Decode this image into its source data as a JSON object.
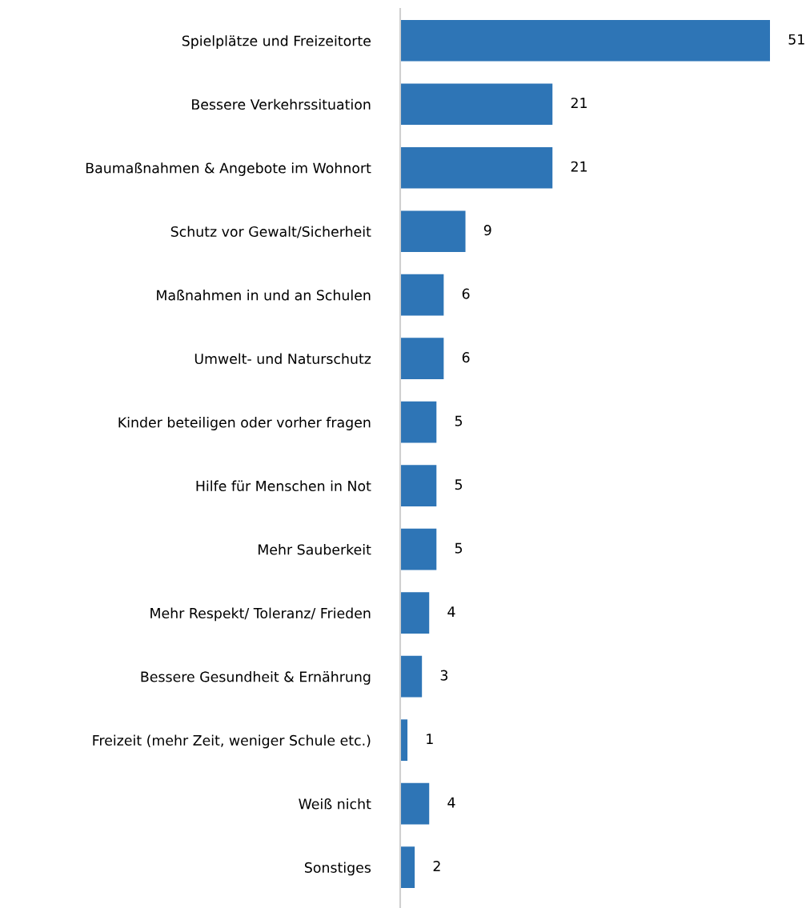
{
  "chart_data": {
    "type": "bar",
    "orientation": "horizontal",
    "categories": [
      "Spielplätze und Freizeitorte",
      "Bessere Verkehrssituation",
      "Baumaßnahmen & Angebote im Wohnort",
      "Schutz vor Gewalt/Sicherheit",
      "Maßnahmen in und an Schulen",
      "Umwelt- und Naturschutz",
      "Kinder beteiligen oder vorher fragen",
      "Hilfe für Menschen in Not",
      "Mehr Sauberkeit",
      "Mehr Respekt/ Toleranz/ Frieden",
      "Bessere Gesundheit & Ernährung",
      "Freizeit (mehr Zeit, weniger Schule etc.)",
      "Weiß nicht",
      "Sonstiges"
    ],
    "values": [
      51,
      21,
      21,
      9,
      6,
      6,
      5,
      5,
      5,
      4,
      3,
      1,
      4,
      2
    ],
    "color": "#2e75b6",
    "data_labels": true,
    "grid": false,
    "legend": false
  }
}
